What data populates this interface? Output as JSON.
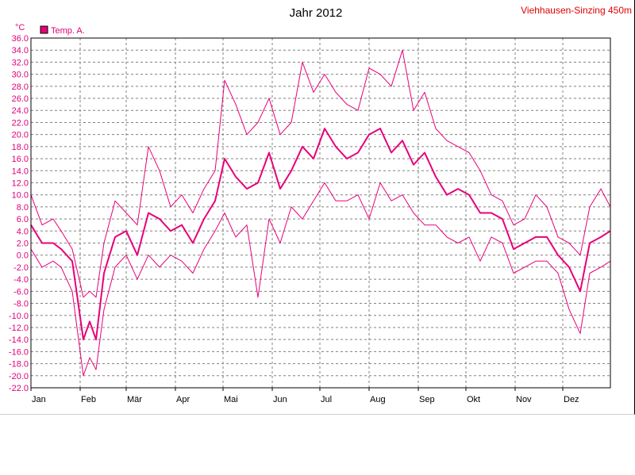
{
  "chart_data": {
    "type": "line",
    "title": "Jahr 2012",
    "station": "Viehhausen-Sinzing 450m",
    "ylabel": "°C",
    "ylim": [
      -22,
      36
    ],
    "ytick_step": 2,
    "yticks": [
      "36.0",
      "34.0",
      "32.0",
      "30.0",
      "28.0",
      "26.0",
      "24.0",
      "22.0",
      "20.0",
      "18.0",
      "16.0",
      "14.0",
      "12.0",
      "10.0",
      "8.0",
      "6.0",
      "4.0",
      "2.0",
      "0.0",
      "-2.0",
      "-4.0",
      "-6.0",
      "-8.0",
      "-10.0",
      "-12.0",
      "-14.0",
      "-16.0",
      "-18.0",
      "-20.0",
      "-22.0"
    ],
    "months": [
      "Jan",
      "Feb",
      "Mär",
      "Apr",
      "Mai",
      "Jun",
      "Jul",
      "Aug",
      "Sep",
      "Okt",
      "Nov",
      "Dez"
    ],
    "month_start_doy": [
      1,
      32,
      61,
      92,
      122,
      153,
      183,
      214,
      245,
      275,
      306,
      336
    ],
    "days_in_year": 366,
    "grid": true,
    "legend_position": "top-left",
    "colors": {
      "series": "#e8007a",
      "grid": "#808080",
      "axis": "#000000"
    },
    "series": [
      {
        "name": "Temp. A.",
        "role": "mean",
        "points": [
          [
            1,
            5
          ],
          [
            8,
            2
          ],
          [
            15,
            2
          ],
          [
            20,
            1
          ],
          [
            27,
            -1
          ],
          [
            34,
            -14
          ],
          [
            38,
            -11
          ],
          [
            42,
            -14
          ],
          [
            47,
            -3
          ],
          [
            54,
            3
          ],
          [
            61,
            4
          ],
          [
            68,
            0
          ],
          [
            75,
            7
          ],
          [
            82,
            6
          ],
          [
            89,
            4
          ],
          [
            96,
            5
          ],
          [
            103,
            2
          ],
          [
            110,
            6
          ],
          [
            117,
            9
          ],
          [
            123,
            16
          ],
          [
            130,
            13
          ],
          [
            137,
            11
          ],
          [
            144,
            12
          ],
          [
            151,
            17
          ],
          [
            158,
            11
          ],
          [
            165,
            14
          ],
          [
            172,
            18
          ],
          [
            179,
            16
          ],
          [
            186,
            21
          ],
          [
            193,
            18
          ],
          [
            200,
            16
          ],
          [
            207,
            17
          ],
          [
            214,
            20
          ],
          [
            221,
            21
          ],
          [
            228,
            17
          ],
          [
            235,
            19
          ],
          [
            242,
            15
          ],
          [
            249,
            17
          ],
          [
            256,
            13
          ],
          [
            263,
            10
          ],
          [
            270,
            11
          ],
          [
            277,
            10
          ],
          [
            284,
            7
          ],
          [
            291,
            7
          ],
          [
            298,
            6
          ],
          [
            305,
            1
          ],
          [
            312,
            2
          ],
          [
            319,
            3
          ],
          [
            326,
            3
          ],
          [
            333,
            0
          ],
          [
            340,
            -2
          ],
          [
            347,
            -6
          ],
          [
            353,
            2
          ],
          [
            360,
            3
          ],
          [
            366,
            4
          ]
        ]
      },
      {
        "name": "",
        "role": "max",
        "points": [
          [
            1,
            10
          ],
          [
            8,
            5
          ],
          [
            15,
            6
          ],
          [
            20,
            4
          ],
          [
            27,
            1
          ],
          [
            34,
            -7
          ],
          [
            38,
            -6
          ],
          [
            42,
            -7
          ],
          [
            47,
            2
          ],
          [
            54,
            9
          ],
          [
            61,
            7
          ],
          [
            68,
            5
          ],
          [
            75,
            18
          ],
          [
            82,
            14
          ],
          [
            89,
            8
          ],
          [
            96,
            10
          ],
          [
            103,
            7
          ],
          [
            110,
            11
          ],
          [
            117,
            14
          ],
          [
            123,
            29
          ],
          [
            130,
            25
          ],
          [
            137,
            20
          ],
          [
            144,
            22
          ],
          [
            151,
            26
          ],
          [
            158,
            20
          ],
          [
            165,
            22
          ],
          [
            172,
            32
          ],
          [
            179,
            27
          ],
          [
            186,
            30
          ],
          [
            193,
            27
          ],
          [
            200,
            25
          ],
          [
            207,
            24
          ],
          [
            214,
            31
          ],
          [
            221,
            30
          ],
          [
            228,
            28
          ],
          [
            235,
            34
          ],
          [
            242,
            24
          ],
          [
            249,
            27
          ],
          [
            256,
            21
          ],
          [
            263,
            19
          ],
          [
            270,
            18
          ],
          [
            277,
            17
          ],
          [
            284,
            14
          ],
          [
            291,
            10
          ],
          [
            298,
            9
          ],
          [
            305,
            5
          ],
          [
            312,
            6
          ],
          [
            319,
            10
          ],
          [
            326,
            8
          ],
          [
            333,
            3
          ],
          [
            340,
            2
          ],
          [
            347,
            0
          ],
          [
            353,
            8
          ],
          [
            360,
            11
          ],
          [
            366,
            8
          ]
        ]
      },
      {
        "name": "",
        "role": "min",
        "points": [
          [
            1,
            1
          ],
          [
            8,
            -2
          ],
          [
            15,
            -1
          ],
          [
            20,
            -2
          ],
          [
            27,
            -6
          ],
          [
            34,
            -20
          ],
          [
            38,
            -17
          ],
          [
            42,
            -19
          ],
          [
            47,
            -9
          ],
          [
            54,
            -2
          ],
          [
            61,
            0
          ],
          [
            68,
            -4
          ],
          [
            75,
            0
          ],
          [
            82,
            -2
          ],
          [
            89,
            0
          ],
          [
            96,
            -1
          ],
          [
            103,
            -3
          ],
          [
            110,
            1
          ],
          [
            117,
            4
          ],
          [
            123,
            7
          ],
          [
            130,
            3
          ],
          [
            137,
            5
          ],
          [
            144,
            -7
          ],
          [
            151,
            6
          ],
          [
            158,
            2
          ],
          [
            165,
            8
          ],
          [
            172,
            6
          ],
          [
            179,
            9
          ],
          [
            186,
            12
          ],
          [
            193,
            9
          ],
          [
            200,
            9
          ],
          [
            207,
            10
          ],
          [
            214,
            6
          ],
          [
            221,
            12
          ],
          [
            228,
            9
          ],
          [
            235,
            10
          ],
          [
            242,
            7
          ],
          [
            249,
            5
          ],
          [
            256,
            5
          ],
          [
            263,
            3
          ],
          [
            270,
            2
          ],
          [
            277,
            3
          ],
          [
            284,
            -1
          ],
          [
            291,
            3
          ],
          [
            298,
            2
          ],
          [
            305,
            -3
          ],
          [
            312,
            -2
          ],
          [
            319,
            -1
          ],
          [
            326,
            -1
          ],
          [
            333,
            -3
          ],
          [
            340,
            -9
          ],
          [
            347,
            -13
          ],
          [
            353,
            -3
          ],
          [
            360,
            -2
          ],
          [
            366,
            -1
          ]
        ]
      }
    ]
  }
}
